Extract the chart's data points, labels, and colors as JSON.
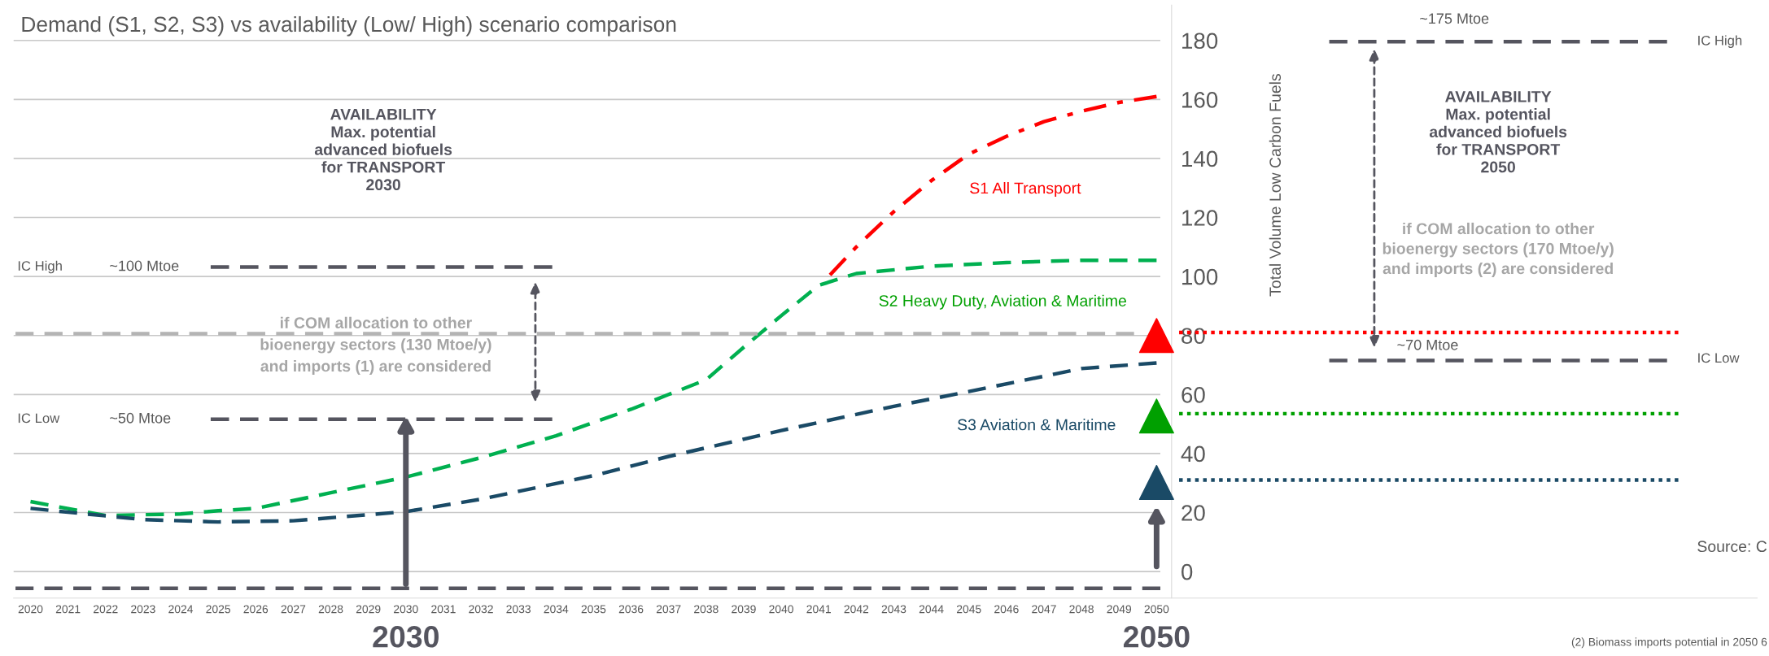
{
  "chart_data": {
    "type": "line",
    "title": "Demand (S1, S2, S3) vs availability (Low/ High) scenario comparison",
    "ylabel": "Total Volume Low Carbon Fuels",
    "xlim": [
      2019.55,
      2066
    ],
    "xticks": [
      2020,
      2021,
      2022,
      2023,
      2024,
      2025,
      2026,
      2027,
      2028,
      2029,
      2030,
      2031,
      2032,
      2033,
      2034,
      2035,
      2036,
      2037,
      2038,
      2039,
      2040,
      2041,
      2042,
      2043,
      2044,
      2045,
      2046,
      2047,
      2048,
      2049,
      2050
    ],
    "ylim": [
      -9,
      192
    ],
    "yticks": [
      0,
      20,
      40,
      60,
      80,
      100,
      120,
      140,
      160,
      180
    ],
    "grid": "y",
    "series": [
      {
        "color": "#ff0000",
        "line_style": "dashdot",
        "x": [
          2041.3,
          2042,
          2043,
          2044,
          2045,
          2046,
          2047,
          2048,
          2049,
          2050
        ],
        "values": [
          100.5,
          110,
          122,
          132.5,
          141.5,
          147.5,
          152.5,
          156,
          159,
          161
        ]
      },
      {
        "color": "#00b050",
        "line_style": "dashed",
        "x": [
          2020,
          2022,
          2024,
          2025,
          2026,
          2028,
          2030,
          2032,
          2034,
          2036,
          2037,
          2038,
          2039,
          2040,
          2041,
          2042,
          2044,
          2046,
          2048,
          2050
        ],
        "values": [
          23.7,
          19,
          19.5,
          20.6,
          21.4,
          26.7,
          32,
          38.6,
          46,
          55,
          60,
          65,
          76,
          86.7,
          97,
          101,
          103.5,
          104.7,
          105.5,
          105.5
        ]
      },
      {
        "color": "#1a4a66",
        "line_style": "dashed",
        "x": [
          2020,
          2023,
          2025,
          2027,
          2030,
          2032,
          2035,
          2037,
          2040,
          2043,
          2045,
          2048,
          2050
        ],
        "values": [
          21.4,
          17.6,
          16.8,
          17.2,
          20.3,
          24.5,
          32.5,
          39,
          47.8,
          56,
          61,
          68.8,
          70.7
        ]
      },
      {
        "color": "#b4b4b4",
        "line_style": "dashed",
        "x": [
          2019.6,
          2049.4
        ],
        "values": [
          80.6,
          80.6
        ]
      },
      {
        "color": "#55555f",
        "line_style": "dashed",
        "x": [
          2019.6,
          2050.1
        ],
        "values": [
          -5.7,
          -5.7
        ]
      },
      {
        "color": "#55555f",
        "line_style": "dashed",
        "x": [
          2024.8,
          2033.9
        ],
        "values": [
          103.2,
          103.2
        ]
      },
      {
        "color": "#55555f",
        "line_style": "dashed",
        "x": [
          2024.8,
          2033.9
        ],
        "values": [
          51.6,
          51.6
        ]
      },
      {
        "color": "#55555f",
        "line_style": "dashed",
        "x": [
          2054.6,
          2063.6
        ],
        "values": [
          179.6,
          179.6
        ]
      },
      {
        "color": "#55555f",
        "line_style": "dashed",
        "x": [
          2054.6,
          2063.6
        ],
        "values": [
          71.5,
          71.5
        ]
      },
      {
        "color": "#ff0000",
        "line_style": "dotted",
        "x": [
          2050.6,
          2063.9
        ],
        "values": [
          81,
          81
        ]
      },
      {
        "color": "#00a000",
        "line_style": "dotted",
        "x": [
          2050.6,
          2063.9
        ],
        "values": [
          53.5,
          53.5
        ]
      },
      {
        "color": "#1a4a66",
        "line_style": "dotted",
        "x": [
          2050.6,
          2063.9
        ],
        "values": [
          31,
          31
        ]
      },
      {
        "type": "scatter",
        "marker": "triangle",
        "color": "#ff0000",
        "x": [
          2050
        ],
        "values": [
          80
        ]
      },
      {
        "type": "scatter",
        "marker": "triangle",
        "color": "#00a000",
        "x": [
          2050
        ],
        "values": [
          52.7
        ]
      },
      {
        "type": "scatter",
        "marker": "triangle",
        "color": "#1a4a66",
        "x": [
          2050
        ],
        "values": [
          30.2
        ]
      }
    ],
    "annotations": [
      "AVAILABILITY\nMax. potential\nadvanced biofuels\nfor TRANSPORT\n2030",
      "IC High",
      "~100 Mtoe",
      "IC Low",
      "~50 Mtoe",
      "if COM allocation to other\nbioenergy sectors (130 Mtoe/y)\nand imports (1) are considered",
      "S1 All Transport",
      "S2 Heavy Duty, Aviation & Maritime",
      "S3 Aviation & Maritime",
      "~175 Mtoe",
      "IC High",
      "IC Low",
      "AVAILABILITY\nMax. potential\nadvanced biofuels\nfor TRANSPORT\n2050",
      "if COM allocation to other\nbioenergy sectors (170 Mtoe/y)\nand imports (2) are considered",
      "~70 Mtoe",
      "2030",
      "2050",
      "Source: C",
      "(2) Biomass imports potential in 2050 6"
    ]
  }
}
